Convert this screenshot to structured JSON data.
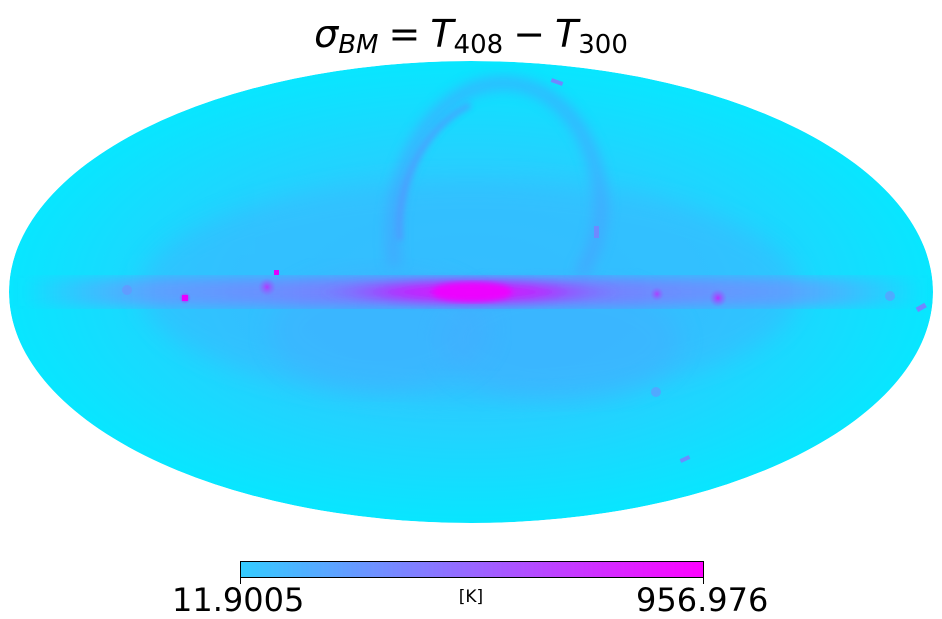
{
  "map": {
    "projection": "mollweide",
    "title": {
      "sigma": "σ",
      "sigma_sub": "BM",
      "eq": "=",
      "t1": "T",
      "t1_sub": "408",
      "minus": "−",
      "t2": "T",
      "t2_sub": "300"
    },
    "colormap": {
      "name": "cool",
      "low_color": "#00ffff",
      "high_color": "#ff00ff"
    },
    "colorbar": {
      "min_label": "11.9005",
      "max_label": "956.976",
      "unit": "[K]"
    }
  }
}
